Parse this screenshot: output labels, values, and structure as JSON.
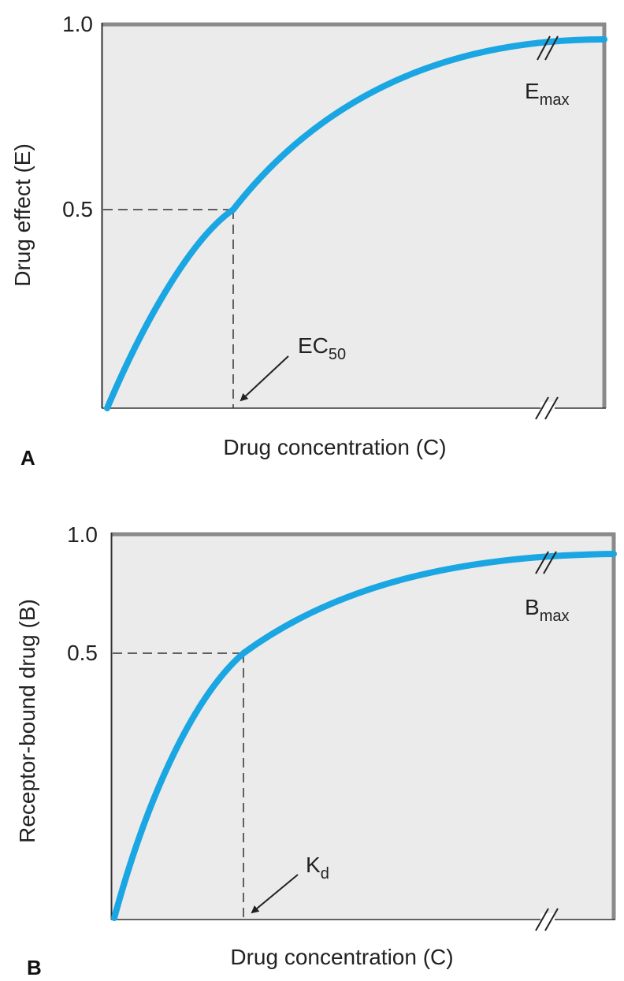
{
  "chart_data": [
    {
      "panel": "A",
      "type": "line",
      "xlabel": "Drug concentration (C)",
      "ylabel": "Drug effect (E)",
      "y_ticks": [
        "1.0",
        "0.5"
      ],
      "ylim": [
        0,
        1
      ],
      "grid": false,
      "x_axis_break": true,
      "curve_color": "#1aa6e3",
      "plot_bg": "#ebebeb",
      "annotations": {
        "max_label": {
          "main": "E",
          "sub": "max"
        },
        "half_label": {
          "main": "EC",
          "sub": "50"
        }
      }
    },
    {
      "panel": "B",
      "type": "line",
      "xlabel": "Drug concentration (C)",
      "ylabel": "Receptor-bound drug (B)",
      "y_ticks": [
        "1.0",
        "0.5"
      ],
      "ylim": [
        0,
        1
      ],
      "grid": false,
      "x_axis_break": true,
      "curve_color": "#1aa6e3",
      "plot_bg": "#ebebeb",
      "annotations": {
        "max_label": {
          "main": "B",
          "sub": "max"
        },
        "half_label": {
          "main": "K",
          "sub": "d"
        }
      }
    }
  ]
}
